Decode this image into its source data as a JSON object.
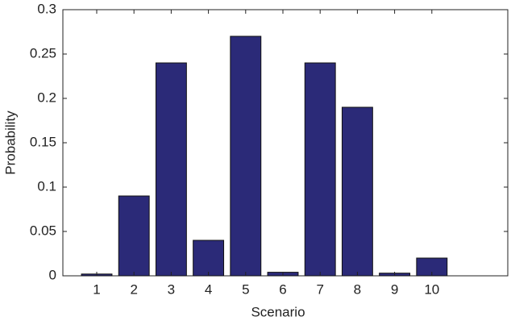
{
  "chart_data": {
    "type": "bar",
    "x_label": "Scenario",
    "y_label": "Probability",
    "categories": [
      "1",
      "2",
      "3",
      "4",
      "5",
      "6",
      "7",
      "8",
      "9",
      "10"
    ],
    "values": [
      0.002,
      0.09,
      0.24,
      0.04,
      0.27,
      0.004,
      0.24,
      0.19,
      0.003,
      0.02
    ],
    "color": "#2b2a78",
    "ylim": [
      0,
      0.3
    ],
    "yticks": [
      0,
      0.05,
      0.1,
      0.15,
      0.2,
      0.25,
      0.3
    ]
  }
}
